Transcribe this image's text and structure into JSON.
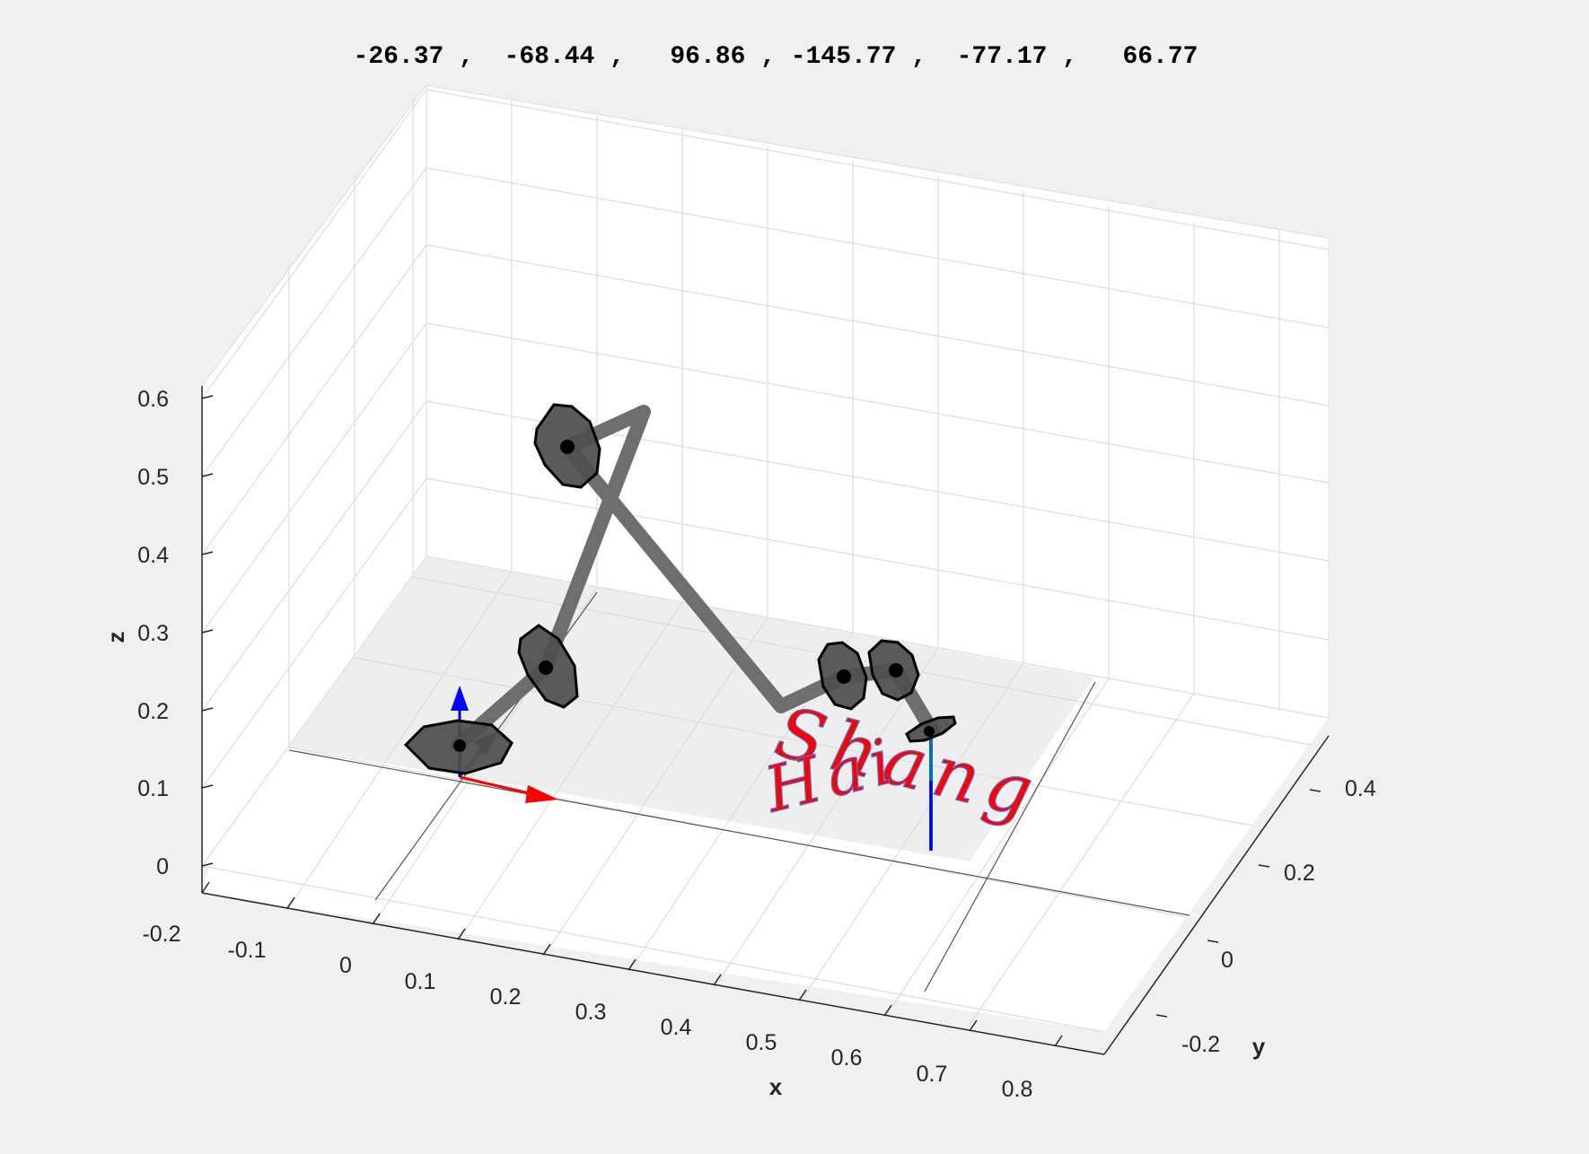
{
  "figure": {
    "title": "-26.37 ,  -68.44 ,   96.86 , -145.77 ,  -77.17 ,   66.77",
    "x_label": "x",
    "y_label": "y",
    "z_label": "z",
    "x_ticks": [
      "-0.2",
      "-0.1",
      "0",
      "0.1",
      "0.2",
      "0.3",
      "0.4",
      "0.5",
      "0.6",
      "0.7",
      "0.8"
    ],
    "y_ticks": [
      "-0.2",
      "0",
      "0.2",
      "0.4"
    ],
    "z_ticks": [
      "0",
      "0.1",
      "0.2",
      "0.3",
      "0.4",
      "0.5",
      "0.6"
    ],
    "annotation": {
      "line1": "Shang",
      "line2": "Hai"
    }
  },
  "colors": {
    "figure_bg": "#f0f0f0",
    "axes_bg": "#ffffff",
    "grid": "#dcdcdc",
    "robot_link": "#666666",
    "joint_disk": "#4d4d4d",
    "trace": "#ff0000",
    "frame_x": "#ff0000",
    "frame_y": "#1e6b1e",
    "frame_z": "#0000ff",
    "tool_axis": "#0072bd"
  }
}
